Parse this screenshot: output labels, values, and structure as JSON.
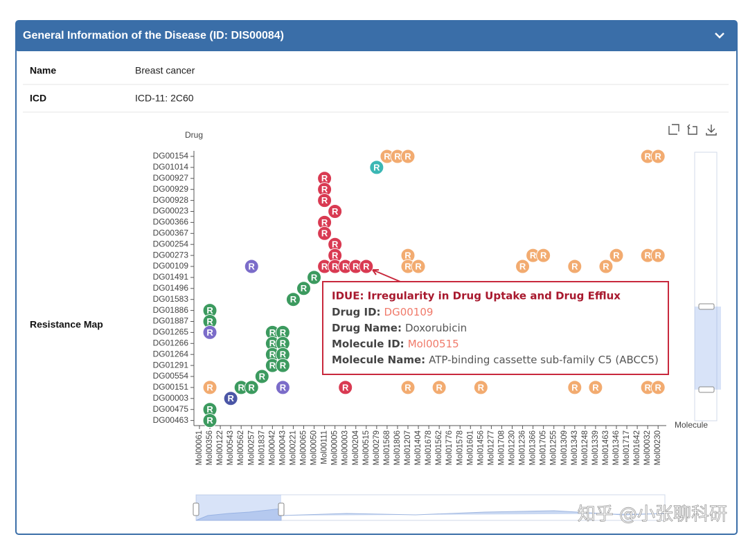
{
  "header": {
    "title": "General Information of the Disease (ID: DIS00084)"
  },
  "table": {
    "rows": [
      [
        "Name",
        "Breast cancer"
      ],
      [
        "ICD",
        "ICD-11: 2C60"
      ]
    ],
    "map_label": "Resistance Map"
  },
  "watermark": "知乎 @小张聊科研",
  "chart_data": {
    "type": "scatter",
    "y_axis_label": "Drug",
    "x_axis_label": "Molecule",
    "marker_label": "R",
    "categories": [
      "Mol00061",
      "Mol00356",
      "Mol00122",
      "Mol00543",
      "Mol00562",
      "Mol00257",
      "Mol01837",
      "Mol00042",
      "Mol00043",
      "Mol00221",
      "Mol00065",
      "Mol00050",
      "Mol00111",
      "Mol00005",
      "Mol00003",
      "Mol00204",
      "Mol00515",
      "Mol00279",
      "Mol01568",
      "Mol01806",
      "Mol01207",
      "Mol01404",
      "Mol01678",
      "Mol01562",
      "Mol01776",
      "Mol01578",
      "Mol01601",
      "Mol01456",
      "Mol01277",
      "Mol01708",
      "Mol01230",
      "Mol01236",
      "Mol01366",
      "Mol01705",
      "Mol01255",
      "Mol01309",
      "Mol01343",
      "Mol01248",
      "Mol01339",
      "Mol01463",
      "Mol01346",
      "Mol01717",
      "Mol01642",
      "Mol00032",
      "Mol00230"
    ],
    "y_categories": [
      "DG00154",
      "DG01014",
      "DG00927",
      "DG00929",
      "DG00928",
      "DG00023",
      "DG00366",
      "DG00367",
      "DG00254",
      "DG00273",
      "DG00109",
      "DG01491",
      "DG01496",
      "DG01583",
      "DG01886",
      "DG01887",
      "DG01265",
      "DG01266",
      "DG01264",
      "DG01291",
      "DG00554",
      "DG00151",
      "DG00003",
      "DG00475",
      "DG00463"
    ],
    "points": [
      {
        "x": "Mol01568",
        "y": "DG00154",
        "color": "#f2ab70"
      },
      {
        "x": "Mol01806",
        "y": "DG00154",
        "color": "#f2ab70"
      },
      {
        "x": "Mol01207",
        "y": "DG00154",
        "color": "#f2ab70"
      },
      {
        "x": "Mol00032",
        "y": "DG00154",
        "color": "#f2ab70"
      },
      {
        "x": "Mol00230",
        "y": "DG00154",
        "color": "#f2ab70"
      },
      {
        "x": "Mol00279",
        "y": "DG01014",
        "color": "#3bb7b4"
      },
      {
        "x": "Mol00111",
        "y": "DG00927",
        "color": "#d93a52"
      },
      {
        "x": "Mol00111",
        "y": "DG00929",
        "color": "#d93a52"
      },
      {
        "x": "Mol00111",
        "y": "DG00928",
        "color": "#d93a52"
      },
      {
        "x": "Mol00005",
        "y": "DG00023",
        "color": "#d93a52"
      },
      {
        "x": "Mol00111",
        "y": "DG00366",
        "color": "#d93a52"
      },
      {
        "x": "Mol00111",
        "y": "DG00367",
        "color": "#d93a52"
      },
      {
        "x": "Mol00005",
        "y": "DG00254",
        "color": "#d93a52"
      },
      {
        "x": "Mol00005",
        "y": "DG00273",
        "color": "#d93a52"
      },
      {
        "x": "Mol01207",
        "y": "DG00273",
        "color": "#f2ab70"
      },
      {
        "x": "Mol01366",
        "y": "DG00273",
        "color": "#f2ab70"
      },
      {
        "x": "Mol01705",
        "y": "DG00273",
        "color": "#f2ab70"
      },
      {
        "x": "Mol01346",
        "y": "DG00273",
        "color": "#f2ab70"
      },
      {
        "x": "Mol00032",
        "y": "DG00273",
        "color": "#f2ab70"
      },
      {
        "x": "Mol00230",
        "y": "DG00273",
        "color": "#f2ab70"
      },
      {
        "x": "Mol00257",
        "y": "DG00109",
        "color": "#7b6cc9"
      },
      {
        "x": "Mol00111",
        "y": "DG00109",
        "color": "#d93a52"
      },
      {
        "x": "Mol00005",
        "y": "DG00109",
        "color": "#d93a52"
      },
      {
        "x": "Mol00003",
        "y": "DG00109",
        "color": "#d93a52"
      },
      {
        "x": "Mol00204",
        "y": "DG00109",
        "color": "#d93a52"
      },
      {
        "x": "Mol00515",
        "y": "DG00109",
        "color": "#d93a52"
      },
      {
        "x": "Mol01207",
        "y": "DG00109",
        "color": "#f2ab70"
      },
      {
        "x": "Mol01404",
        "y": "DG00109",
        "color": "#f2ab70"
      },
      {
        "x": "Mol01236",
        "y": "DG00109",
        "color": "#f2ab70"
      },
      {
        "x": "Mol01343",
        "y": "DG00109",
        "color": "#f2ab70"
      },
      {
        "x": "Mol01463",
        "y": "DG00109",
        "color": "#f2ab70"
      },
      {
        "x": "Mol00050",
        "y": "DG01491",
        "color": "#3c9a5f"
      },
      {
        "x": "Mol00065",
        "y": "DG01496",
        "color": "#3c9a5f"
      },
      {
        "x": "Mol00221",
        "y": "DG01583",
        "color": "#3c9a5f"
      },
      {
        "x": "Mol00356",
        "y": "DG01886",
        "color": "#3c9a5f"
      },
      {
        "x": "Mol00356",
        "y": "DG01887",
        "color": "#3c9a5f"
      },
      {
        "x": "Mol00356",
        "y": "DG01265",
        "color": "#7b6cc9"
      },
      {
        "x": "Mol00042",
        "y": "DG01265",
        "color": "#3c9a5f"
      },
      {
        "x": "Mol00043",
        "y": "DG01265",
        "color": "#3c9a5f"
      },
      {
        "x": "Mol00042",
        "y": "DG01266",
        "color": "#3c9a5f"
      },
      {
        "x": "Mol00043",
        "y": "DG01266",
        "color": "#3c9a5f"
      },
      {
        "x": "Mol00042",
        "y": "DG01264",
        "color": "#3c9a5f"
      },
      {
        "x": "Mol00043",
        "y": "DG01264",
        "color": "#3c9a5f"
      },
      {
        "x": "Mol00042",
        "y": "DG01291",
        "color": "#3c9a5f"
      },
      {
        "x": "Mol00043",
        "y": "DG01291",
        "color": "#3c9a5f"
      },
      {
        "x": "Mol01837",
        "y": "DG00554",
        "color": "#3c9a5f"
      },
      {
        "x": "Mol00356",
        "y": "DG00151",
        "color": "#f2ab70"
      },
      {
        "x": "Mol00562",
        "y": "DG00151",
        "color": "#3c9a5f"
      },
      {
        "x": "Mol00257",
        "y": "DG00151",
        "color": "#3c9a5f"
      },
      {
        "x": "Mol00043",
        "y": "DG00151",
        "color": "#7b6cc9"
      },
      {
        "x": "Mol00003",
        "y": "DG00151",
        "color": "#d93a52"
      },
      {
        "x": "Mol01207",
        "y": "DG00151",
        "color": "#f2ab70"
      },
      {
        "x": "Mol01562",
        "y": "DG00151",
        "color": "#f2ab70"
      },
      {
        "x": "Mol01456",
        "y": "DG00151",
        "color": "#f2ab70"
      },
      {
        "x": "Mol01343",
        "y": "DG00151",
        "color": "#f2ab70"
      },
      {
        "x": "Mol01339",
        "y": "DG00151",
        "color": "#f2ab70"
      },
      {
        "x": "Mol00032",
        "y": "DG00151",
        "color": "#f2ab70"
      },
      {
        "x": "Mol00230",
        "y": "DG00151",
        "color": "#f2ab70"
      },
      {
        "x": "Mol00543",
        "y": "DG00003",
        "color": "#4b56a6"
      },
      {
        "x": "Mol00356",
        "y": "DG00475",
        "color": "#3c9a5f"
      },
      {
        "x": "Mol00356",
        "y": "DG00463",
        "color": "#3c9a5f"
      }
    ],
    "tooltip": {
      "title": "IDUE: Irregularity in Drug Uptake and Drug Efflux",
      "fields": [
        {
          "label": "Drug ID:",
          "value": "DG00109",
          "highlight": true
        },
        {
          "label": "Drug Name:",
          "value": "Doxorubicin",
          "highlight": false
        },
        {
          "label": "Molecule ID:",
          "value": "Mol00515",
          "highlight": true
        },
        {
          "label": "Molecule Name:",
          "value": "ATP-binding cassette sub-family C5 (ABCC5)",
          "highlight": false
        }
      ]
    }
  }
}
